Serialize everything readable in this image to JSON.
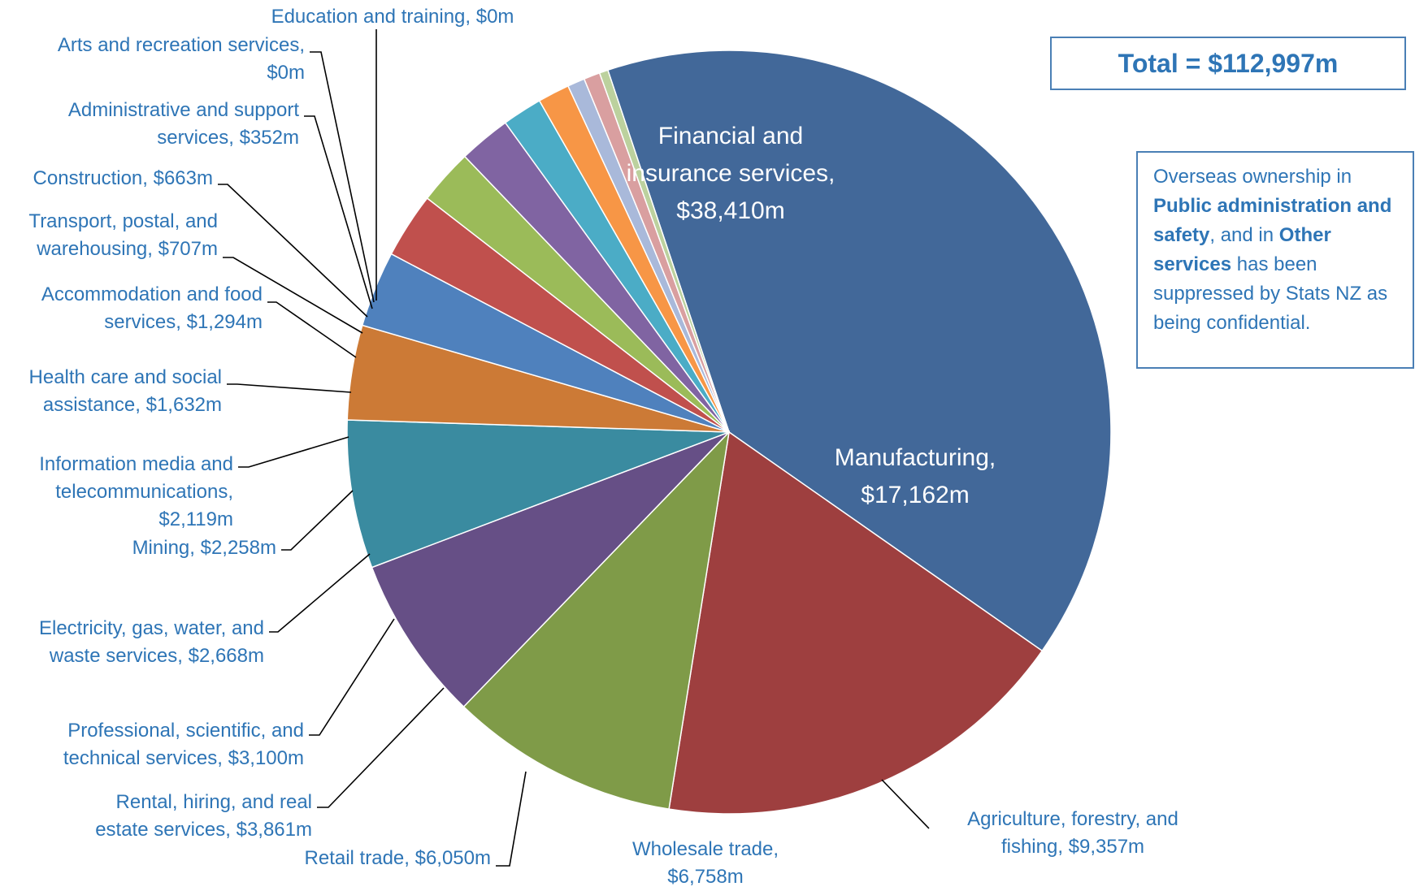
{
  "chart_data": {
    "type": "pie",
    "start_angle_deg": 108.5,
    "direction": "clockwise",
    "slices": [
      {
        "name": "Financial and insurance services",
        "value": 38410,
        "label": [
          "Financial and",
          "insurance services,",
          "$38,410m"
        ],
        "color": "#426899"
      },
      {
        "name": "Manufacturing",
        "value": 17162,
        "label": [
          "Manufacturing,",
          "$17,162m"
        ],
        "color": "#9e3f3f"
      },
      {
        "name": "Agriculture, forestry, and fishing",
        "value": 9357,
        "label": [
          "Agriculture, forestry, and",
          "fishing, $9,357m"
        ],
        "color": "#7f9b48"
      },
      {
        "name": "Wholesale trade",
        "value": 6758,
        "label": [
          "Wholesale trade,",
          "$6,758m"
        ],
        "color": "#664f86"
      },
      {
        "name": "Retail trade",
        "value": 6050,
        "label": [
          "Retail trade, $6,050m"
        ],
        "color": "#3a8ba0"
      },
      {
        "name": "Rental, hiring, and real estate services",
        "value": 3861,
        "label": [
          "Rental, hiring, and real",
          "estate services, $3,861m"
        ],
        "color": "#cc7a36"
      },
      {
        "name": "Professional, scientific, and technical services",
        "value": 3100,
        "label": [
          "Professional, scientific, and",
          "technical services, $3,100m"
        ],
        "color": "#4f81bd"
      },
      {
        "name": "Electricity, gas, water, and waste services",
        "value": 2668,
        "label": [
          "Electricity, gas, water, and",
          "waste services, $2,668m"
        ],
        "color": "#c0504d"
      },
      {
        "name": "Mining",
        "value": 2258,
        "label": [
          "Mining, $2,258m"
        ],
        "color": "#9bbb59"
      },
      {
        "name": "Information media and telecommunications",
        "value": 2119,
        "label": [
          "Information media and",
          "telecommunications,",
          "$2,119m"
        ],
        "color": "#8064a2"
      },
      {
        "name": "Health care and social assistance",
        "value": 1632,
        "label": [
          "Health care and social",
          "assistance, $1,632m"
        ],
        "color": "#4bacc6"
      },
      {
        "name": "Accommodation and food services",
        "value": 1294,
        "label": [
          "Accommodation and food",
          "services, $1,294m"
        ],
        "color": "#f79646"
      },
      {
        "name": "Transport, postal, and warehousing",
        "value": 707,
        "label": [
          "Transport, postal, and",
          "warehousing, $707m"
        ],
        "color": "#a9b9da"
      },
      {
        "name": "Construction",
        "value": 663,
        "label": [
          "Construction, $663m"
        ],
        "color": "#d99fa0"
      },
      {
        "name": "Administrative and support services",
        "value": 352,
        "label": [
          "Administrative and support",
          "services, $352m"
        ],
        "color": "#bcd19e"
      },
      {
        "name": "Arts and recreation services",
        "value": 0,
        "label": [
          "Arts and recreation services,",
          "$0m"
        ],
        "color": "#b9acd0"
      },
      {
        "name": "Education and training",
        "value": 0,
        "label": [
          "Education and training, $0m"
        ],
        "color": "#9fd3e2"
      }
    ]
  },
  "total_box": {
    "text": "Total = $112,997m"
  },
  "note": {
    "part1": "Overseas ownership in ",
    "bold1": "Public administration and safety",
    "part2": ", and in ",
    "bold2": "Other services",
    "part3": " has been suppressed by Stats NZ as being confidential."
  },
  "colors": {
    "label_text": "#2e75b6",
    "border": "#4a7fb5",
    "leader": "#000000"
  }
}
